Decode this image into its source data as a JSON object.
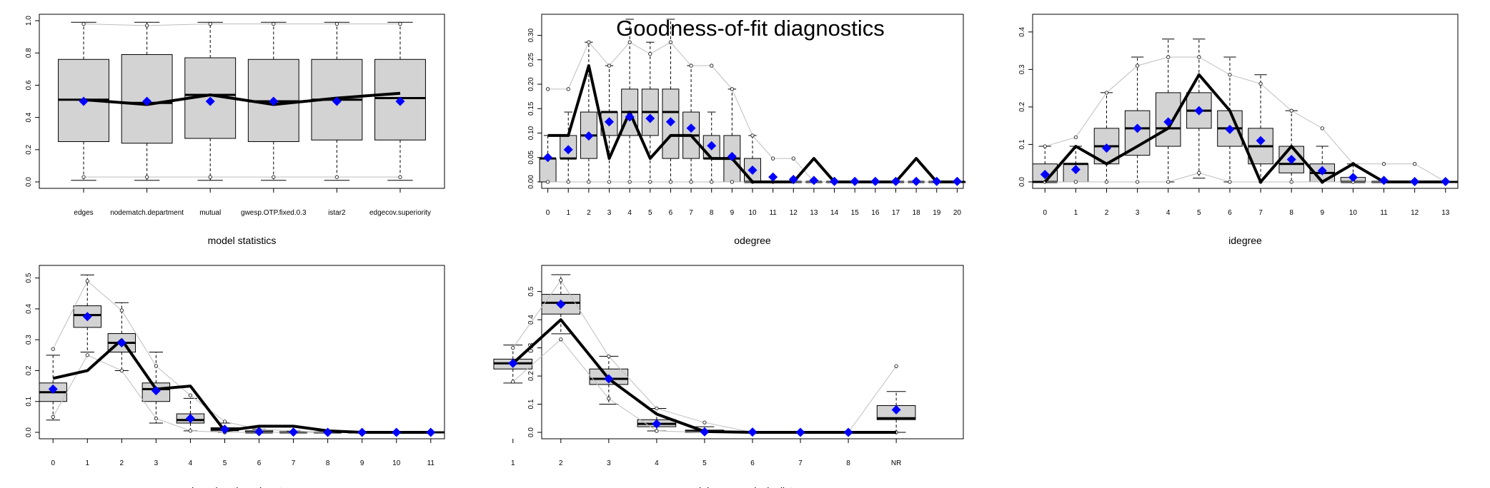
{
  "figure": {
    "title": "Goodness-of-fit diagnostics"
  },
  "colors": {
    "box_fill": "#d3d3d3",
    "observed": "#000000",
    "sim_mean": "#0000ff",
    "bounds": "#bebebe"
  },
  "chart_data": [
    {
      "type": "boxplot",
      "xlabel": "model statistics",
      "ylim": [
        0,
        1
      ],
      "yticks": [
        0,
        0.2,
        0.4,
        0.6,
        0.8,
        1
      ],
      "ytick_labels": [
        "0.0",
        "0.2",
        "0.4",
        "0.6",
        "0.8",
        "1.0"
      ],
      "categories": [
        "edges",
        "nodematch.department",
        "mutual",
        "gwesp.OTP.fixed.0.3",
        "istar2",
        "edgecov.superiority"
      ],
      "box_q1": [
        0.25,
        0.24,
        0.27,
        0.25,
        0.26,
        0.26
      ],
      "box_median": [
        0.51,
        0.49,
        0.54,
        0.5,
        0.51,
        0.52
      ],
      "box_q3": [
        0.76,
        0.79,
        0.77,
        0.76,
        0.76,
        0.76
      ],
      "whisker_low": [
        0.01,
        0.01,
        0.01,
        0.01,
        0.01,
        0.01
      ],
      "whisker_high": [
        0.99,
        0.99,
        0.99,
        0.99,
        0.99,
        0.99
      ],
      "observed": [
        0.51,
        0.48,
        0.54,
        0.48,
        0.52,
        0.55
      ],
      "sim_mean": [
        0.5,
        0.5,
        0.5,
        0.5,
        0.5,
        0.5
      ],
      "upper_bound": [
        0.98,
        0.97,
        0.98,
        0.98,
        0.98,
        0.98
      ],
      "lower_bound": [
        0.03,
        0.03,
        0.03,
        0.03,
        0.03,
        0.03
      ]
    },
    {
      "type": "boxplot",
      "xlabel": "odegree",
      "ylim": [
        0,
        0.33
      ],
      "yticks": [
        0,
        0.05,
        0.1,
        0.15,
        0.2,
        0.25,
        0.3
      ],
      "ytick_labels": [
        "0.00",
        "0.05",
        "0.10",
        "0.15",
        "0.20",
        "0.25",
        "0.30"
      ],
      "categories": [
        "0",
        "1",
        "2",
        "3",
        "4",
        "5",
        "6",
        "7",
        "8",
        "9",
        "10",
        "11",
        "12",
        "13",
        "14",
        "15",
        "16",
        "17",
        "18",
        "19",
        "20"
      ],
      "box_q1": [
        0,
        0.048,
        0.048,
        0.095,
        0.095,
        0.095,
        0.048,
        0.048,
        0.048,
        0,
        0,
        0,
        0,
        0,
        0,
        0,
        0,
        0,
        0,
        0,
        0
      ],
      "box_median": [
        0.048,
        0.048,
        0.095,
        0.143,
        0.143,
        0.143,
        0.143,
        0.095,
        0.048,
        0.048,
        0,
        0,
        0,
        0,
        0,
        0,
        0,
        0,
        0,
        0,
        0
      ],
      "box_q3": [
        0.048,
        0.095,
        0.143,
        0.143,
        0.19,
        0.19,
        0.19,
        0.143,
        0.095,
        0.095,
        0.048,
        0,
        0,
        0,
        0,
        0,
        0,
        0,
        0,
        0,
        0
      ],
      "whisker_low": [
        0,
        0,
        0,
        0,
        0,
        0,
        0,
        0,
        0,
        0,
        0,
        0,
        0,
        0,
        0,
        0,
        0,
        0,
        0,
        0,
        0
      ],
      "whisker_high": [
        0.095,
        0.143,
        0.286,
        0.238,
        0.333,
        0.286,
        0.333,
        0.238,
        0.143,
        0.19,
        0.095,
        0,
        0,
        0,
        0,
        0,
        0,
        0,
        0,
        0,
        0
      ],
      "observed": [
        0.095,
        0.095,
        0.238,
        0.048,
        0.143,
        0.048,
        0.095,
        0.095,
        0.048,
        0.048,
        0,
        0,
        0,
        0.048,
        0,
        0,
        0,
        0,
        0.048,
        0,
        0
      ],
      "sim_mean": [
        0.05,
        0.066,
        0.094,
        0.123,
        0.133,
        0.13,
        0.123,
        0.11,
        0.074,
        0.052,
        0.024,
        0.01,
        0.005,
        0.003,
        0.001,
        0.001,
        0.001,
        0.001,
        0.001,
        0.001,
        0.001
      ],
      "upper_bound": [
        0.19,
        0.19,
        0.286,
        0.238,
        0.286,
        0.262,
        0.286,
        0.238,
        0.238,
        0.19,
        0.095,
        0.048,
        0.048,
        0,
        0,
        0,
        0,
        0,
        0,
        0,
        0
      ],
      "lower_bound": [
        0,
        0,
        0,
        0,
        0,
        0,
        0,
        0,
        0,
        0,
        0,
        0,
        0,
        0,
        0,
        0,
        0,
        0,
        0,
        0,
        0
      ]
    },
    {
      "type": "boxplot",
      "xlabel": "idegree",
      "ylim": [
        0,
        0.43
      ],
      "yticks": [
        0,
        0.1,
        0.2,
        0.3,
        0.4
      ],
      "ytick_labels": [
        "0.0",
        "0.1",
        "0.2",
        "0.3",
        "0.4"
      ],
      "categories": [
        "0",
        "1",
        "2",
        "3",
        "4",
        "5",
        "6",
        "7",
        "8",
        "9",
        "10",
        "11",
        "12",
        "13"
      ],
      "box_q1": [
        0,
        0,
        0.048,
        0.071,
        0.095,
        0.143,
        0.095,
        0.048,
        0.024,
        0,
        0,
        0,
        0,
        0
      ],
      "box_median": [
        0,
        0.048,
        0.095,
        0.143,
        0.143,
        0.19,
        0.143,
        0.095,
        0.048,
        0.024,
        0,
        0,
        0,
        0
      ],
      "box_q3": [
        0.048,
        0.048,
        0.143,
        0.19,
        0.238,
        0.238,
        0.19,
        0.143,
        0.095,
        0.048,
        0.012,
        0,
        0,
        0
      ],
      "whisker_low": [
        0,
        0,
        0,
        0,
        0,
        0.01,
        0,
        0,
        0,
        0,
        0,
        0,
        0,
        0
      ],
      "whisker_high": [
        0.095,
        0.095,
        0.238,
        0.333,
        0.381,
        0.381,
        0.333,
        0.286,
        0.19,
        0.095,
        0.048,
        0,
        0,
        0
      ],
      "observed": [
        0,
        0.095,
        0.048,
        0.095,
        0.143,
        0.286,
        0.19,
        0,
        0.095,
        0,
        0.048,
        0,
        0,
        0
      ],
      "sim_mean": [
        0.02,
        0.033,
        0.09,
        0.143,
        0.16,
        0.19,
        0.14,
        0.11,
        0.06,
        0.03,
        0.012,
        0.004,
        0.001,
        0.001
      ],
      "upper_bound": [
        0.095,
        0.119,
        0.238,
        0.31,
        0.333,
        0.333,
        0.286,
        0.262,
        0.19,
        0.143,
        0.048,
        0.048,
        0.048,
        0
      ],
      "lower_bound": [
        0,
        0,
        0,
        0,
        0,
        0.024,
        0,
        0,
        0,
        0,
        0,
        0,
        0,
        0
      ]
    },
    {
      "type": "boxplot",
      "xlabel": "edge-wise shared partners",
      "ylim": [
        0,
        0.52
      ],
      "yticks": [
        0,
        0.1,
        0.2,
        0.3,
        0.4,
        0.5
      ],
      "ytick_labels": [
        "0.0",
        "0.1",
        "0.2",
        "0.3",
        "0.4",
        "0.5"
      ],
      "categories": [
        "0",
        "1",
        "2",
        "3",
        "4",
        "5",
        "6",
        "7",
        "8",
        "9",
        "10",
        "11"
      ],
      "box_q1": [
        0.1,
        0.34,
        0.26,
        0.1,
        0.03,
        0.005,
        0,
        0,
        0,
        0,
        0,
        0
      ],
      "box_median": [
        0.13,
        0.38,
        0.29,
        0.14,
        0.04,
        0.01,
        0,
        0,
        0,
        0,
        0,
        0
      ],
      "box_q3": [
        0.16,
        0.41,
        0.32,
        0.16,
        0.06,
        0.015,
        0.005,
        0.002,
        0,
        0,
        0,
        0
      ],
      "whisker_low": [
        0.04,
        0.26,
        0.2,
        0.03,
        0.005,
        0,
        0,
        0,
        0,
        0,
        0,
        0
      ],
      "whisker_high": [
        0.25,
        0.51,
        0.42,
        0.26,
        0.11,
        0.03,
        0.01,
        0.005,
        0,
        0,
        0,
        0
      ],
      "observed": [
        0.175,
        0.2,
        0.3,
        0.14,
        0.15,
        0.005,
        0.02,
        0.02,
        0.005,
        0,
        0,
        0
      ],
      "sim_mean": [
        0.14,
        0.375,
        0.29,
        0.135,
        0.045,
        0.01,
        0.002,
        0.001,
        0,
        0,
        0,
        0
      ],
      "upper_bound": [
        0.27,
        0.49,
        0.395,
        0.215,
        0.12,
        0.035,
        0.01,
        0.005,
        0,
        0,
        0,
        0
      ],
      "lower_bound": [
        0.05,
        0.25,
        0.2,
        0.045,
        0.005,
        0,
        0,
        0,
        0,
        0,
        0,
        0
      ]
    },
    {
      "type": "boxplot",
      "xlabel": "minimum geodesic distance",
      "ylim": [
        0,
        0.57
      ],
      "yticks": [
        0,
        0.1,
        0.2,
        0.3,
        0.4,
        0.5
      ],
      "ytick_labels": [
        "0.0",
        "0.1",
        "0.2",
        "0.3",
        "0.4",
        "0.5"
      ],
      "categories": [
        "1",
        "2",
        "3",
        "4",
        "5",
        "6",
        "7",
        "8",
        "NR"
      ],
      "box_q1": [
        0.225,
        0.42,
        0.17,
        0.02,
        0,
        0,
        0,
        0,
        0.045
      ],
      "box_median": [
        0.245,
        0.46,
        0.19,
        0.03,
        0.003,
        0,
        0,
        0,
        0.05
      ],
      "box_q3": [
        0.26,
        0.49,
        0.225,
        0.045,
        0.008,
        0,
        0,
        0,
        0.095
      ],
      "whisker_low": [
        0.175,
        0.35,
        0.1,
        0.005,
        0,
        0,
        0,
        0,
        0
      ],
      "whisker_high": [
        0.31,
        0.56,
        0.27,
        0.085,
        0.02,
        0,
        0,
        0,
        0.145
      ],
      "observed": [
        0.245,
        0.4,
        0.19,
        0.065,
        0.003,
        0,
        0,
        0,
        0
      ],
      "sim_mean": [
        0.245,
        0.455,
        0.19,
        0.03,
        0.002,
        0.001,
        0,
        0,
        0.08
      ],
      "upper_bound": [
        0.3,
        0.54,
        0.27,
        0.085,
        0.035,
        0,
        0,
        0,
        0.235
      ],
      "lower_bound": [
        0.18,
        0.33,
        0.12,
        0.005,
        0,
        0,
        0,
        0,
        0
      ]
    }
  ]
}
